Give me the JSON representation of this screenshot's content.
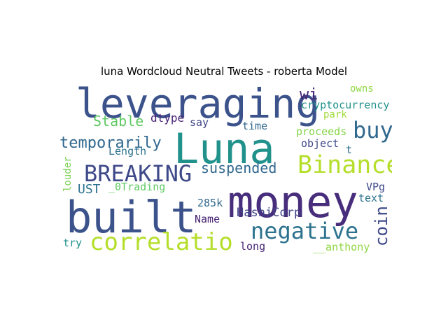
{
  "title": "luna Wordcloud Neutral Tweets - roberta Model",
  "words": [
    {
      "text": "leveraging",
      "color": "#3b528b"
    },
    {
      "text": "Luna",
      "color": "#21918c"
    },
    {
      "text": "money",
      "color": "#472d7b"
    },
    {
      "text": "built",
      "color": "#3b528b"
    },
    {
      "text": "buy",
      "color": "#31688e"
    },
    {
      "text": "Binance",
      "color": "#b5de2b"
    },
    {
      "text": "BREAKING",
      "color": "#3e4989"
    },
    {
      "text": "negative",
      "color": "#2c728e"
    },
    {
      "text": "correlatio",
      "color": "#b5de2b"
    },
    {
      "text": "temporarily",
      "color": "#31688e"
    },
    {
      "text": "suspended",
      "color": "#31688e"
    },
    {
      "text": "Stable",
      "color": "#5ec962"
    },
    {
      "text": "wi",
      "color": "#482475"
    },
    {
      "text": "coin",
      "color": "#3e4989"
    },
    {
      "text": "UST",
      "color": "#2c728e"
    },
    {
      "text": "owns",
      "color": "#90d743"
    },
    {
      "text": "cryptocurrency",
      "color": "#21918c"
    },
    {
      "text": "park",
      "color": "#a0da39"
    },
    {
      "text": "dtype",
      "color": "#482475"
    },
    {
      "text": "say",
      "color": "#414487"
    },
    {
      "text": "time",
      "color": "#31688e"
    },
    {
      "text": "proceeds",
      "color": "#86d549"
    },
    {
      "text": "object",
      "color": "#3e4989"
    },
    {
      "text": "Length",
      "color": "#2c728e"
    },
    {
      "text": "t",
      "color": "#2c728e"
    },
    {
      "text": "louder",
      "color": "#7ad151"
    },
    {
      "text": "_0Trading",
      "color": "#5ec962"
    },
    {
      "text": "VPg",
      "color": "#3e4989"
    },
    {
      "text": "text",
      "color": "#2c728e"
    },
    {
      "text": "285k",
      "color": "#31688e"
    },
    {
      "text": "HashiCorp",
      "color": "#414487"
    },
    {
      "text": "Name",
      "color": "#482475"
    },
    {
      "text": "try",
      "color": "#21918c"
    },
    {
      "text": "long",
      "color": "#482475"
    },
    {
      "text": "__anthony",
      "color": "#90d743"
    }
  ]
}
